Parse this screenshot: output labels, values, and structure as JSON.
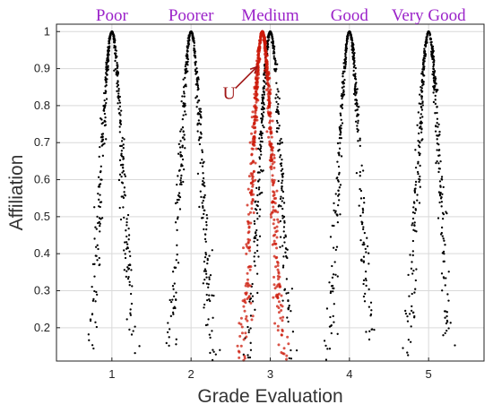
{
  "chart_data": {
    "type": "scatter",
    "xlabel": "Grade Evaluation",
    "ylabel": "Affiliation",
    "xlim": [
      0.3,
      5.7
    ],
    "ylim": [
      0.11,
      1.02
    ],
    "xticks": [
      "1",
      "2",
      "3",
      "4",
      "5"
    ],
    "yticks": [
      "0.2",
      "0.3",
      "0.4",
      "0.5",
      "0.6",
      "0.7",
      "0.8",
      "0.9",
      "1"
    ],
    "grid": true,
    "grade_labels": [
      {
        "label": "Poor",
        "x": 1
      },
      {
        "label": "Poorer",
        "x": 2
      },
      {
        "label": "Medium",
        "x": 3
      },
      {
        "label": "Good",
        "x": 4
      },
      {
        "label": "Very Good",
        "x": 5
      }
    ],
    "series": [
      {
        "color": "#000000",
        "cloud_model": {
          "Ex": 1,
          "En": 0.14,
          "He": 0.02
        },
        "points_count": 420
      },
      {
        "color": "#000000",
        "cloud_model": {
          "Ex": 2,
          "En": 0.14,
          "He": 0.02
        },
        "points_count": 420
      },
      {
        "color": "#000000",
        "cloud_model": {
          "Ex": 3,
          "En": 0.14,
          "He": 0.02
        },
        "points_count": 420
      },
      {
        "color": "#000000",
        "cloud_model": {
          "Ex": 4,
          "En": 0.14,
          "He": 0.02
        },
        "points_count": 420
      },
      {
        "color": "#000000",
        "cloud_model": {
          "Ex": 5,
          "En": 0.14,
          "He": 0.02
        },
        "points_count": 420
      },
      {
        "color": "#cc1a0a",
        "cloud_model": {
          "Ex": 2.9,
          "En": 0.13,
          "He": 0.02
        },
        "points_count": 700
      }
    ],
    "annotations": [
      {
        "text": "U",
        "points_to": {
          "x": 2.9,
          "y": 0.9
        }
      }
    ],
    "colors": {
      "label": "#9b23c9",
      "annotation": "#a01515",
      "highlight": "#cc1a0a",
      "points": "#000000"
    }
  }
}
